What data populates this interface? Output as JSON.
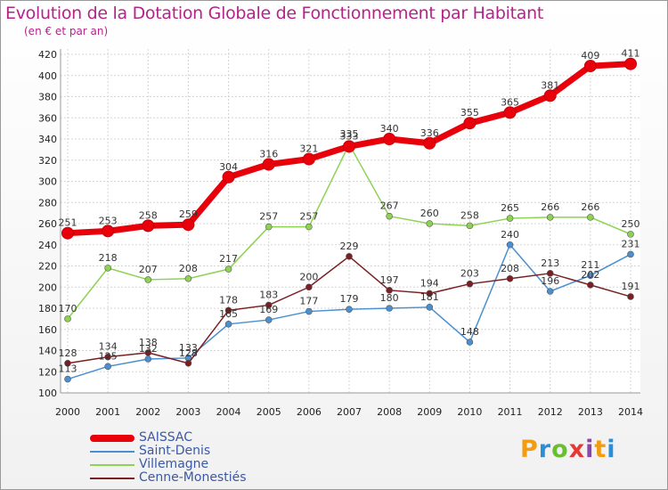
{
  "title": "Evolution de la Dotation Globale de Fonctionnement par Habitant",
  "subtitle": "(en € et par an)",
  "logo": {
    "text": "Proxiti",
    "colors": [
      "#f39c12",
      "#2a8fd4",
      "#6abf2e",
      "#e53935",
      "#8e44ad",
      "#f39c12",
      "#2a8fd4"
    ]
  },
  "chart_data": {
    "type": "line",
    "title": "Evolution de la Dotation Globale de Fonctionnement par Habitant",
    "subtitle": "(en € et par an)",
    "xlabel": "",
    "ylabel": "",
    "categories": [
      "2000",
      "2001",
      "2002",
      "2003",
      "2004",
      "2005",
      "2006",
      "2007",
      "2008",
      "2009",
      "2010",
      "2011",
      "2012",
      "2013",
      "2014"
    ],
    "ylim": [
      100,
      420
    ],
    "yticks": [
      100,
      120,
      140,
      160,
      180,
      200,
      220,
      240,
      260,
      280,
      300,
      320,
      340,
      360,
      380,
      400,
      420
    ],
    "grid": true,
    "legend_position": "bottom-left",
    "series": [
      {
        "name": "SAISSAC",
        "color": "#e8000b",
        "values": [
          251,
          253,
          258,
          259,
          304,
          316,
          321,
          333,
          340,
          336,
          355,
          365,
          381,
          409,
          411
        ],
        "labels": [
          "251",
          "253",
          "258",
          "259",
          "304",
          "316",
          "321",
          "333",
          "340",
          "336",
          "355",
          "365",
          "381",
          "409",
          "411"
        ]
      },
      {
        "name": "Saint-Denis",
        "color": "#4a8fcf",
        "values": [
          113,
          125,
          132,
          133,
          165,
          169,
          177,
          179,
          180,
          181,
          148,
          240,
          196,
          211,
          231
        ],
        "labels": [
          "113",
          "125",
          "132",
          "133",
          "165",
          "169",
          "177",
          "179",
          "180",
          "181",
          "148",
          "240",
          "196",
          "211",
          "231"
        ]
      },
      {
        "name": "Villemagne",
        "color": "#8ed254",
        "values": [
          170,
          218,
          207,
          208,
          217,
          257,
          257,
          335,
          267,
          260,
          258,
          265,
          266,
          266,
          250
        ],
        "labels": [
          "170",
          "218",
          "207",
          "208",
          "217",
          "257",
          "257",
          "335",
          "267",
          "260",
          "258",
          "265",
          "266",
          "266",
          "250"
        ]
      },
      {
        "name": "Cenne-Monestiés",
        "color": "#7a1f24",
        "values": [
          128,
          134,
          138,
          128,
          178,
          183,
          200,
          229,
          197,
          194,
          203,
          208,
          213,
          202,
          191
        ],
        "labels": [
          "128",
          "134",
          "138",
          "128",
          "178",
          "183",
          "200",
          "229",
          "197",
          "194",
          "203",
          "208",
          "213",
          "202",
          "191"
        ]
      }
    ]
  }
}
